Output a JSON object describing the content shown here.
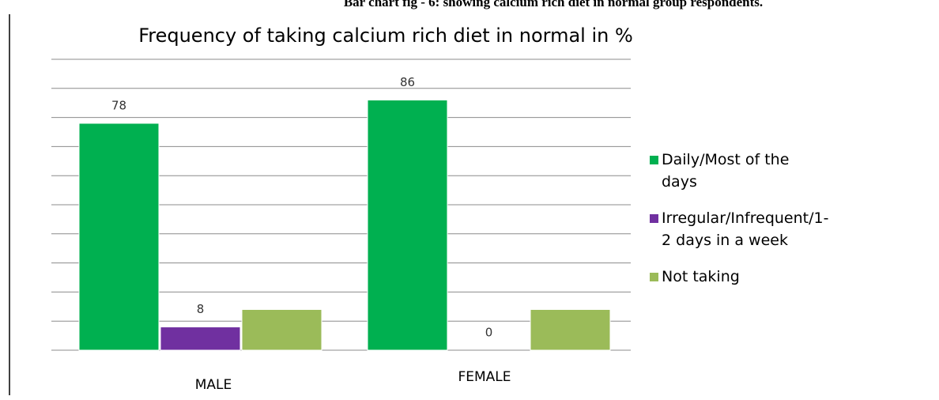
{
  "caption": "Bar chart fig - 6: showing calcium rich diet in normal group respondents.",
  "chart_data": {
    "type": "bar",
    "title": "Frequency of taking calcium rich diet in normal in %",
    "categories": [
      "MALE",
      "FEMALE"
    ],
    "series": [
      {
        "name": "Daily/Most of the days",
        "color": "#00b050",
        "values": [
          78,
          86
        ],
        "labels": true
      },
      {
        "name": "Irregular/Infrequent/1-2 days in a week",
        "color": "#7030a0",
        "values": [
          8,
          0
        ],
        "labels": true
      },
      {
        "name": "Not taking",
        "color": "#9bbb59",
        "values": [
          14,
          14
        ],
        "labels": false
      }
    ],
    "ylim": [
      0,
      100
    ],
    "yticks": [
      0,
      10,
      20,
      30,
      40,
      50,
      60,
      70,
      80,
      90,
      100
    ],
    "grid": true,
    "legend": "right"
  }
}
